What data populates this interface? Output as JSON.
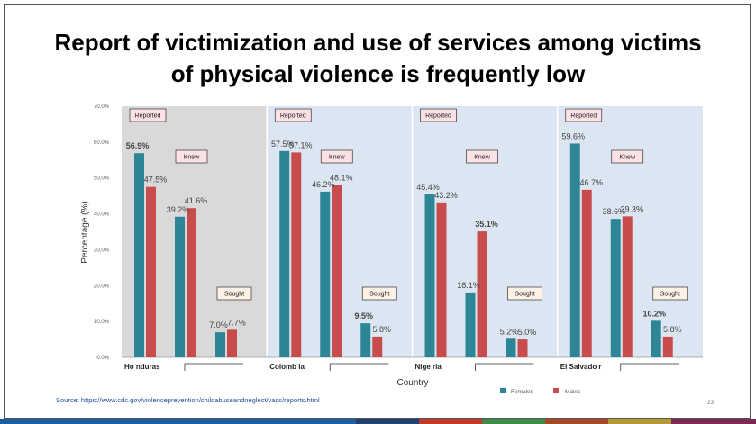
{
  "slide": {
    "title_line1": "Report of victimization and use of services among victims",
    "title_line2": "of physical violence is frequently low",
    "source": "Source: https://www.cdc.gov/violenceprevention/childabuseandneglect/vacs/reports.html",
    "page_number": "23",
    "footer_colors": [
      "#1f5e9e",
      "#20406e",
      "#c0392b",
      "#3d8a4a",
      "#a04a2a",
      "#b59a3a",
      "#7a2a52"
    ]
  },
  "chart_data": {
    "type": "bar",
    "ylabel": "Percentage (%)",
    "xlabel": "Country",
    "ylim": [
      0,
      70
    ],
    "yticks": [
      "0.0%",
      "10.0%",
      "20.0%",
      "30.0%",
      "40.0%",
      "50.0%",
      "60.0%",
      "70.0%"
    ],
    "colors": {
      "females": "#2e8596",
      "males": "#c94c4c",
      "panel_gray": "#d9d9d9",
      "panel_blue": "#dce6f2",
      "callout_fill": "#fbe1e4",
      "sought_fill": "#fdf0e4"
    },
    "legend": [
      "Females",
      "Males"
    ],
    "countries": [
      {
        "name": "Ho nduras",
        "groups": [
          {
            "label": "Reported",
            "female": 56.9,
            "male": 47.5,
            "female_label": "56.9%",
            "male_label": "47.5%",
            "female_bold": true,
            "male_bold": false
          },
          {
            "label": "Knew",
            "female": 39.2,
            "male": 41.6,
            "female_label": "39.2%",
            "male_label": "41.6%",
            "female_bold": false,
            "male_bold": false
          },
          {
            "label": "Sought",
            "female": 7.0,
            "male": 7.7,
            "female_label": "7.0%",
            "male_label": "7.7%",
            "female_bold": false,
            "male_bold": false
          }
        ]
      },
      {
        "name": "Colomb ia",
        "groups": [
          {
            "label": "Reported",
            "female": 57.5,
            "male": 57.1,
            "female_label": "57.5%",
            "male_label": "57.1%",
            "female_bold": false,
            "male_bold": false
          },
          {
            "label": "Knew",
            "female": 46.2,
            "male": 48.1,
            "female_label": "46.2%",
            "male_label": "48.1%",
            "female_bold": false,
            "male_bold": false
          },
          {
            "label": "Sought",
            "female": 9.5,
            "male": 5.8,
            "female_label": "9.5%",
            "male_label": "5.8%",
            "female_bold": true,
            "male_bold": false
          }
        ]
      },
      {
        "name": "Nige ria",
        "groups": [
          {
            "label": "Reported",
            "female": 45.4,
            "male": 43.2,
            "female_label": "45.4%",
            "male_label": "43.2%",
            "female_bold": false,
            "male_bold": false
          },
          {
            "label": "Knew",
            "female": 18.1,
            "male": 35.1,
            "female_label": "18.1%",
            "male_label": "35.1%",
            "female_bold": false,
            "male_bold": true
          },
          {
            "label": "Sought",
            "female": 5.2,
            "male": 5.0,
            "female_label": "5.2%",
            "male_label": "5.0%",
            "female_bold": false,
            "male_bold": false
          }
        ]
      },
      {
        "name": "El Salvado r",
        "groups": [
          {
            "label": "Reported",
            "female": 59.6,
            "male": 46.7,
            "female_label": "59.6%",
            "male_label": "46.7%",
            "female_bold": false,
            "male_bold": false
          },
          {
            "label": "Knew",
            "female": 38.6,
            "male": 39.3,
            "female_label": "38.6%",
            "male_label": "39.3%",
            "female_bold": false,
            "male_bold": false
          },
          {
            "label": "Sought",
            "female": 10.2,
            "male": 5.8,
            "female_label": "10.2%",
            "male_label": "5.8%",
            "female_bold": true,
            "male_bold": false
          }
        ]
      }
    ]
  }
}
